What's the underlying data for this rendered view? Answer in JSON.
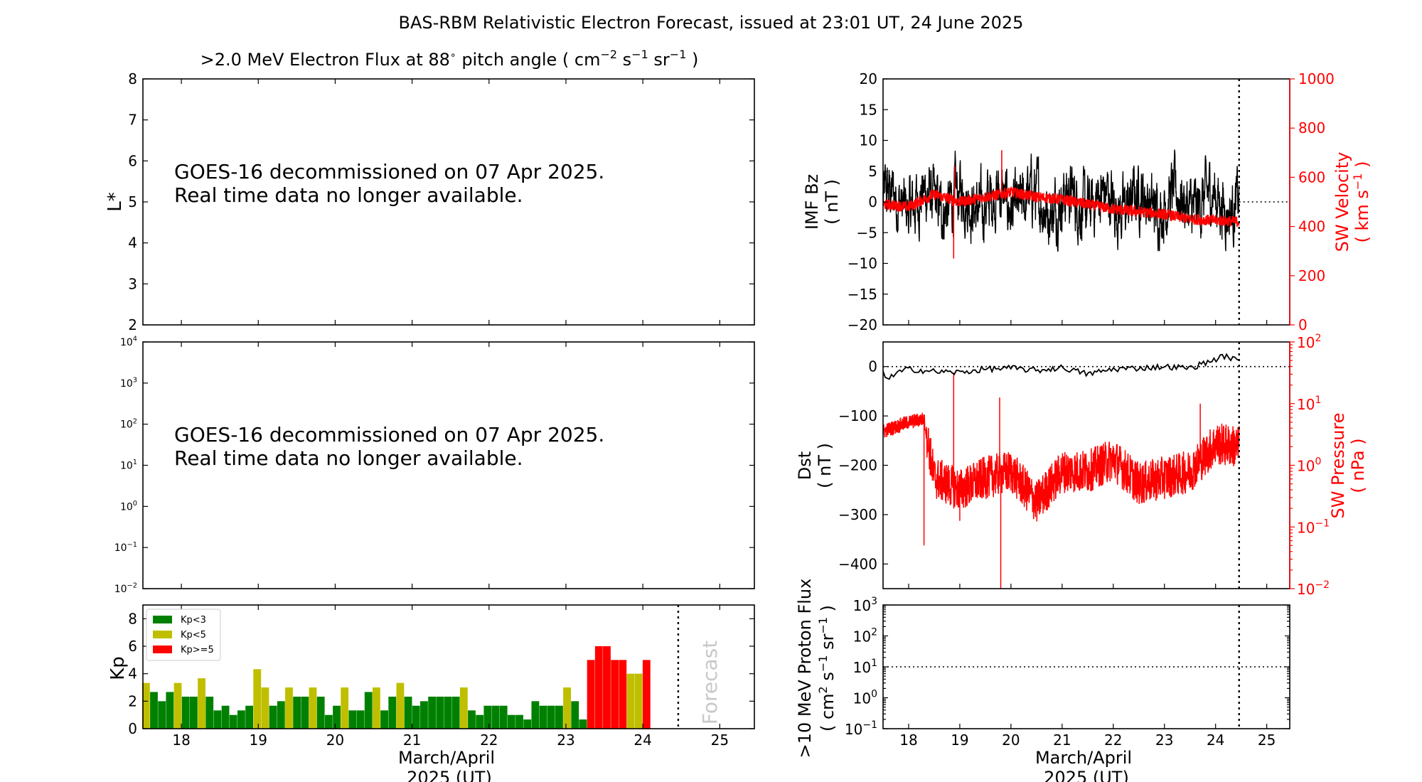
{
  "figure": {
    "title": "BAS-RBM Relativistic Electron Forecast, issued at 23:01 UT, 24 June 2025"
  },
  "panel_flux_lstar": {
    "title_prefix": ">2.0 MeV Electron Flux at 88",
    "title_deg": "∘",
    "title_mid": " pitch angle ( cm",
    "title_sup1": "−2",
    "title_s": " s",
    "title_sup2": "−1",
    "title_sr": " sr",
    "title_sup3": "−1",
    "title_end": " )",
    "ylabel": "L*",
    "yticks": [
      "2",
      "3",
      "4",
      "5",
      "6",
      "7",
      "8"
    ],
    "message_line1": "GOES-16 decommissioned on 07 Apr 2025.",
    "message_line2": "Real time data no longer available."
  },
  "panel_flux_log": {
    "ytick_exps": [
      "−2",
      "−1",
      "0",
      "1",
      "2",
      "3",
      "4"
    ],
    "ytick_base": "10",
    "message_line1": "GOES-16 decommissioned on 07 Apr 2025.",
    "message_line2": "Real time data no longer available."
  },
  "panel_kp": {
    "ylabel": "Kp",
    "yticks": [
      "0",
      "2",
      "4",
      "6",
      "8"
    ],
    "xticks": [
      "18",
      "19",
      "20",
      "21",
      "22",
      "23",
      "24",
      "25"
    ],
    "xlabel_line1": "March/April",
    "xlabel_line2": "2025 (UT)",
    "forecast_watermark": "Forecast",
    "legend": [
      {
        "label": "Kp<3",
        "color": "#008000"
      },
      {
        "label": "Kp<5",
        "color": "#bfbf00"
      },
      {
        "label": "Kp>=5",
        "color": "#ff0000"
      }
    ]
  },
  "panel_imf": {
    "ylabel_line1": "IMF Bz",
    "ylabel_line2": "( nT )",
    "yticks": [
      "−20",
      "−15",
      "−10",
      "−5",
      "0",
      "5",
      "10",
      "15",
      "20"
    ],
    "right_ylabel_line1": "SW Velocity",
    "right_ylabel_line2_a": "( km s",
    "right_ylabel_line2_sup": "−1",
    "right_ylabel_line2_b": " )",
    "right_yticks": [
      "0",
      "200",
      "400",
      "600",
      "800",
      "1000"
    ]
  },
  "panel_dst": {
    "ylabel_line1": "Dst",
    "ylabel_line2": "( nT )",
    "yticks": [
      "−400",
      "−300",
      "−200",
      "−100",
      "0"
    ],
    "right_ylabel_line1": "SW Pressure",
    "right_ylabel_line2": "( nPa )",
    "right_ytick_exps": [
      "−2",
      "−1",
      "0",
      "1",
      "2"
    ],
    "right_ytick_base": "10"
  },
  "panel_proton": {
    "ylabel_line1": ">10 MeV Proton Flux",
    "ylabel_line2_a": "( cm",
    "ylabel_line2_sup1": "2",
    "ylabel_line2_s": " s",
    "ylabel_line2_sup2": "−1",
    "ylabel_line2_sr": " sr",
    "ylabel_line2_sup3": "−1",
    "ylabel_line2_end": " )",
    "ytick_exps": [
      "−1",
      "0",
      "1",
      "2",
      "3"
    ],
    "ytick_base": "10",
    "xticks": [
      "18",
      "19",
      "20",
      "21",
      "22",
      "23",
      "24",
      "25"
    ],
    "xlabel_line1": "March/April",
    "xlabel_line2": "2025 (UT)"
  },
  "colors": {
    "bz_line": "#000000",
    "velocity_line": "#ff0000",
    "dst_line": "#000000",
    "pressure_line": "#ff0000",
    "kp_low": "#008000",
    "kp_mid": "#bfbf00",
    "kp_high": "#ff0000"
  },
  "chart_data": [
    {
      "type": "bar",
      "panel": "kp",
      "xlim": [
        17.5,
        25.45
      ],
      "ylim": [
        0,
        9
      ],
      "bar_width_days": 0.1,
      "start_day": 17.54,
      "step_days": 0.1033,
      "values": [
        3.33,
        2.67,
        2.0,
        2.67,
        3.33,
        2.33,
        2.33,
        3.67,
        2.33,
        1.33,
        1.67,
        1.0,
        1.33,
        1.67,
        4.33,
        3.0,
        1.67,
        2.0,
        3.0,
        2.33,
        2.33,
        3.0,
        2.33,
        1.0,
        1.67,
        3.0,
        1.33,
        1.33,
        2.67,
        3.0,
        1.33,
        2.33,
        3.33,
        2.33,
        1.67,
        2.0,
        2.33,
        2.33,
        2.33,
        2.33,
        3.0,
        1.33,
        1.0,
        1.67,
        1.67,
        1.67,
        1.0,
        1.0,
        0.67,
        2.0,
        1.67,
        1.67,
        1.67,
        3.0,
        2.0,
        0.67,
        5.0,
        6.0,
        6.0,
        5.0,
        5.0,
        4.0,
        4.0,
        5.0
      ],
      "forecast_start_day": 24.46
    },
    {
      "type": "line",
      "panel": "imf",
      "series_key": "bz",
      "xlim": [
        17.5,
        25.45
      ],
      "ylim": [
        -20,
        20
      ],
      "t_start": 17.5,
      "t_end": 24.46,
      "approx_mean_nT": 0,
      "approx_range_nT": [
        -8,
        8
      ]
    },
    {
      "type": "line",
      "panel": "imf",
      "series_key": "velocity",
      "axis": "right",
      "ylim": [
        0,
        1000
      ],
      "t_start": 17.5,
      "t_end": 24.46,
      "knots_x": [
        17.5,
        18.0,
        18.5,
        19.0,
        19.5,
        20.0,
        20.5,
        21.0,
        21.5,
        22.0,
        22.5,
        23.0,
        23.5,
        24.0,
        24.46
      ],
      "knots_y": [
        490,
        480,
        530,
        500,
        520,
        540,
        520,
        510,
        490,
        470,
        460,
        450,
        430,
        425,
        420
      ],
      "spikes": [
        {
          "x": 18.88,
          "y": 270
        },
        {
          "x": 18.9,
          "y": 645
        },
        {
          "x": 19.82,
          "y": 710
        }
      ]
    },
    {
      "type": "line",
      "panel": "dst",
      "series_key": "dst",
      "ylim": [
        -450,
        50
      ],
      "xlim": [
        17.5,
        25.45
      ],
      "knots_x": [
        17.5,
        17.6,
        17.8,
        18.0,
        18.5,
        19.0,
        19.5,
        20.0,
        20.5,
        21.0,
        21.5,
        22.0,
        22.5,
        23.0,
        23.5,
        24.0,
        24.2,
        24.46
      ],
      "knots_y": [
        -10,
        -25,
        -12,
        -5,
        -10,
        -12,
        -5,
        -3,
        -8,
        -2,
        -15,
        -5,
        -3,
        0,
        -3,
        15,
        22,
        10
      ]
    },
    {
      "type": "line",
      "panel": "dst",
      "series_key": "pressure",
      "axis": "right",
      "scale": "log",
      "ylim_exp": [
        -2,
        2
      ],
      "t_start": 17.5,
      "t_end": 24.46,
      "knots_x": [
        17.5,
        18.0,
        18.3,
        18.5,
        19.0,
        19.5,
        20.0,
        20.5,
        21.0,
        21.5,
        22.0,
        22.5,
        23.0,
        23.5,
        24.0,
        24.46
      ],
      "knots_log": [
        0.55,
        0.7,
        0.75,
        -0.2,
        -0.4,
        -0.2,
        -0.1,
        -0.6,
        -0.1,
        -0.1,
        0.1,
        -0.3,
        -0.2,
        -0.1,
        0.35,
        0.3
      ],
      "spikes": [
        {
          "x": 18.3,
          "log": -1.3
        },
        {
          "x": 18.88,
          "log": 1.5
        },
        {
          "x": 19.0,
          "log": -0.9
        },
        {
          "x": 19.78,
          "log": 1.1
        },
        {
          "x": 19.8,
          "log": -2.0
        },
        {
          "x": 23.7,
          "log": 1.0
        }
      ]
    },
    {
      "type": "line",
      "panel": "proton",
      "series_key": "proton_threshold",
      "scale": "log",
      "ylim_exp": [
        -1,
        3
      ],
      "xlim": [
        17.5,
        25.45
      ],
      "threshold": 10,
      "forecast_start_day": 24.46
    }
  ]
}
